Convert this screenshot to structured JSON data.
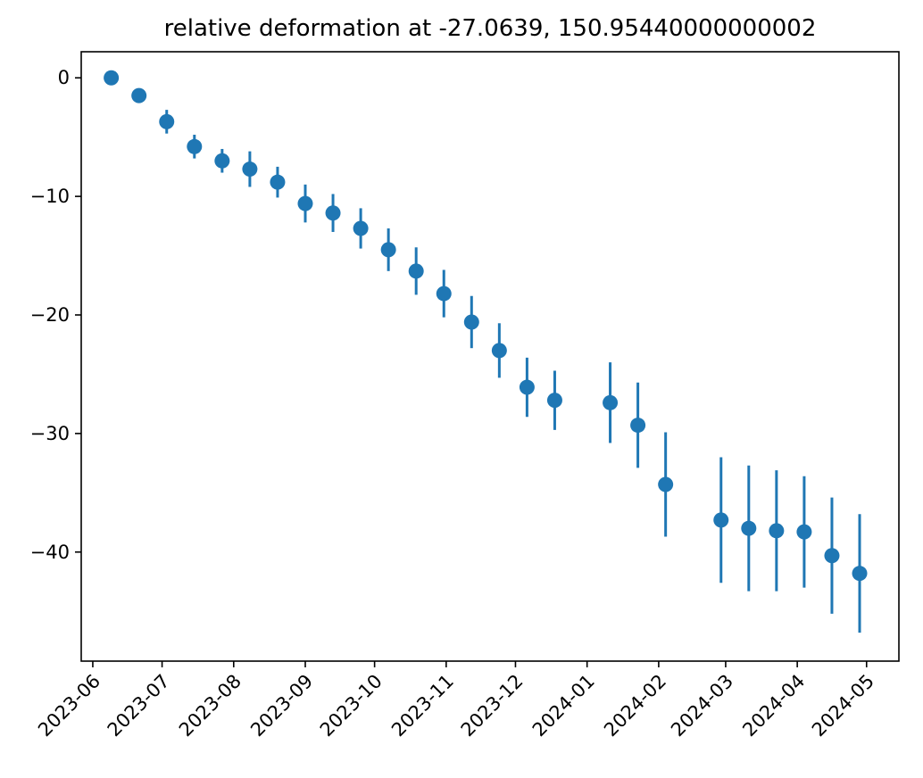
{
  "chart_data": {
    "type": "scatter",
    "title": "relative deformation at -27.0639, 150.95440000000002",
    "xlabel": "",
    "ylabel": "",
    "x_ticks": [
      "2023-06",
      "2023-07",
      "2023-08",
      "2023-09",
      "2023-10",
      "2023-11",
      "2023-12",
      "2024-01",
      "2024-02",
      "2024-03",
      "2024-04",
      "2024-05"
    ],
    "xlim": [
      "2023-05-27",
      "2024-05-15"
    ],
    "y_ticks": [
      0,
      -10,
      -20,
      -30,
      -40
    ],
    "ylim": [
      -49.2,
      2.2
    ],
    "grid": false,
    "color": "#1f77b4",
    "series": [
      {
        "name": "deformation",
        "points": [
          {
            "date": "2023-06-09",
            "y": 0.0,
            "err": 0.0
          },
          {
            "date": "2023-06-21",
            "y": -1.5,
            "err": 0.3
          },
          {
            "date": "2023-07-03",
            "y": -3.7,
            "err": 1.0
          },
          {
            "date": "2023-07-15",
            "y": -5.8,
            "err": 1.0
          },
          {
            "date": "2023-07-27",
            "y": -7.0,
            "err": 1.0
          },
          {
            "date": "2023-08-08",
            "y": -7.7,
            "err": 1.5
          },
          {
            "date": "2023-08-20",
            "y": -8.8,
            "err": 1.3
          },
          {
            "date": "2023-09-01",
            "y": -10.6,
            "err": 1.6
          },
          {
            "date": "2023-09-13",
            "y": -11.4,
            "err": 1.6
          },
          {
            "date": "2023-09-25",
            "y": -12.7,
            "err": 1.7
          },
          {
            "date": "2023-10-07",
            "y": -14.5,
            "err": 1.8
          },
          {
            "date": "2023-10-19",
            "y": -16.3,
            "err": 2.0
          },
          {
            "date": "2023-10-31",
            "y": -18.2,
            "err": 2.0
          },
          {
            "date": "2023-11-12",
            "y": -20.6,
            "err": 2.2
          },
          {
            "date": "2023-11-24",
            "y": -23.0,
            "err": 2.3
          },
          {
            "date": "2023-12-06",
            "y": -26.1,
            "err": 2.5
          },
          {
            "date": "2023-12-18",
            "y": -27.2,
            "err": 2.5
          },
          {
            "date": "2024-01-11",
            "y": -27.4,
            "err": 3.4
          },
          {
            "date": "2024-01-23",
            "y": -29.3,
            "err": 3.6
          },
          {
            "date": "2024-02-04",
            "y": -34.3,
            "err": 4.4
          },
          {
            "date": "2024-02-28",
            "y": -37.3,
            "err": 5.3
          },
          {
            "date": "2024-03-11",
            "y": -38.0,
            "err": 5.3
          },
          {
            "date": "2024-03-23",
            "y": -38.2,
            "err": 5.1
          },
          {
            "date": "2024-04-04",
            "y": -38.3,
            "err": 4.7
          },
          {
            "date": "2024-04-16",
            "y": -40.3,
            "err": 4.9
          },
          {
            "date": "2024-04-28",
            "y": -41.8,
            "err": 5.0
          }
        ]
      }
    ]
  }
}
